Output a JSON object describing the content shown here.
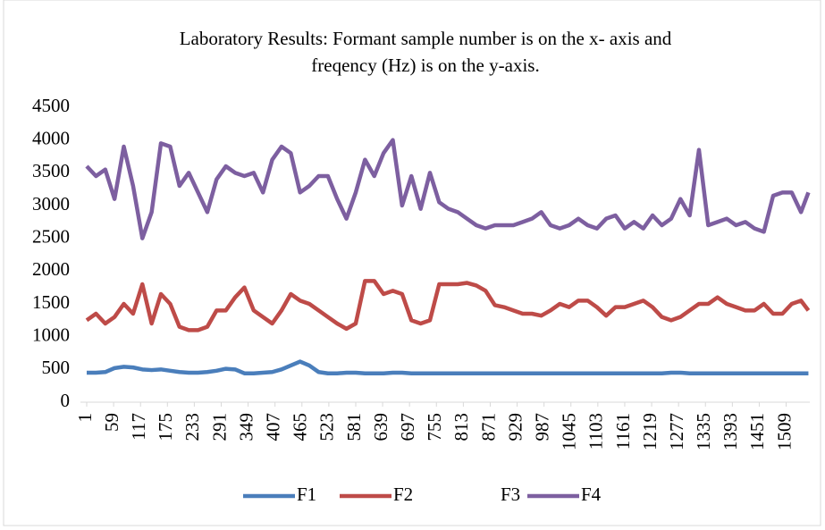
{
  "chart_data": {
    "type": "line",
    "title": [
      "Laboratory Results: Formant sample number is on the x- axis and",
      "freqency (Hz) is on the y-axis."
    ],
    "x": [
      1,
      21,
      41,
      61,
      81,
      101,
      121,
      141,
      161,
      181,
      201,
      221,
      241,
      261,
      281,
      301,
      321,
      341,
      361,
      381,
      401,
      421,
      441,
      461,
      481,
      501,
      521,
      541,
      561,
      581,
      601,
      621,
      641,
      661,
      681,
      701,
      721,
      741,
      761,
      781,
      801,
      821,
      841,
      861,
      881,
      901,
      921,
      941,
      961,
      981,
      1001,
      1021,
      1041,
      1061,
      1081,
      1101,
      1121,
      1141,
      1161,
      1181,
      1201,
      1221,
      1241,
      1261,
      1281,
      1301,
      1321,
      1341,
      1361,
      1381,
      1401,
      1421,
      1441,
      1461,
      1481,
      1501,
      1521,
      1541,
      1557
    ],
    "series": [
      {
        "name": "F1",
        "color": "#4a7ebb",
        "values": [
          450,
          450,
          460,
          520,
          540,
          530,
          500,
          490,
          500,
          480,
          460,
          450,
          450,
          460,
          480,
          510,
          500,
          440,
          440,
          450,
          460,
          500,
          560,
          620,
          560,
          460,
          440,
          440,
          450,
          450,
          440,
          440,
          440,
          450,
          450,
          440,
          440,
          440,
          440,
          440,
          440,
          440,
          440,
          440,
          440,
          440,
          440,
          440,
          440,
          440,
          440,
          440,
          440,
          440,
          440,
          440,
          440,
          440,
          440,
          440,
          440,
          440,
          440,
          450,
          450,
          440,
          440,
          440,
          440,
          440,
          440,
          440,
          440,
          440,
          440,
          440,
          440,
          440,
          440
        ]
      },
      {
        "name": "F2",
        "color": "#be4b48",
        "values": [
          1250,
          1350,
          1200,
          1300,
          1500,
          1350,
          1800,
          1200,
          1650,
          1500,
          1150,
          1100,
          1100,
          1150,
          1400,
          1400,
          1600,
          1750,
          1400,
          1300,
          1200,
          1400,
          1650,
          1550,
          1500,
          1400,
          1300,
          1200,
          1120,
          1200,
          1850,
          1850,
          1650,
          1700,
          1650,
          1250,
          1200,
          1250,
          1800,
          1800,
          1800,
          1820,
          1780,
          1700,
          1480,
          1450,
          1400,
          1350,
          1350,
          1320,
          1400,
          1500,
          1450,
          1550,
          1550,
          1450,
          1320,
          1450,
          1450,
          1500,
          1550,
          1450,
          1300,
          1250,
          1300,
          1400,
          1500,
          1500,
          1600,
          1500,
          1450,
          1400,
          1400,
          1500,
          1350,
          1350,
          1500,
          1550,
          1400
        ]
      },
      {
        "name": "F3",
        "values": [
          null,
          null,
          null,
          null,
          null,
          null,
          null,
          null,
          null,
          null,
          null,
          null,
          null,
          null,
          null,
          null,
          null,
          null,
          null,
          null,
          null,
          null,
          null,
          null,
          null,
          null,
          null,
          null,
          null,
          null,
          null,
          null,
          null,
          null,
          null,
          null,
          null,
          null,
          null,
          null,
          null,
          null,
          null,
          null,
          null,
          null,
          null,
          null,
          null,
          null,
          null,
          null,
          null,
          null,
          null,
          null,
          null,
          null,
          null,
          null,
          null,
          null,
          null,
          null,
          null,
          null,
          null,
          null,
          null,
          null,
          null,
          null,
          null,
          null,
          null,
          null,
          null,
          null,
          null
        ]
      },
      {
        "name": "F4",
        "color": "#7d5fa0",
        "values": [
          3600,
          3450,
          3550,
          3100,
          3900,
          3300,
          2500,
          2900,
          3950,
          3900,
          3300,
          3500,
          3200,
          2900,
          3400,
          3600,
          3500,
          3450,
          3500,
          3200,
          3700,
          3900,
          3800,
          3200,
          3300,
          3450,
          3450,
          3100,
          2800,
          3200,
          3700,
          3450,
          3800,
          4000,
          3000,
          3450,
          2950,
          3500,
          3050,
          2950,
          2900,
          2800,
          2700,
          2650,
          2700,
          2700,
          2700,
          2750,
          2800,
          2900,
          2700,
          2650,
          2700,
          2800,
          2700,
          2650,
          2800,
          2850,
          2650,
          2750,
          2650,
          2850,
          2700,
          2800,
          3100,
          2850,
          3850,
          2700,
          2750,
          2800,
          2700,
          2750,
          2650,
          2600,
          3150,
          3200,
          3200,
          2900,
          3200
        ]
      }
    ],
    "xlim": [
      1,
      1560
    ],
    "xticks": [
      1,
      59,
      117,
      175,
      233,
      291,
      349,
      407,
      465,
      523,
      581,
      639,
      697,
      755,
      813,
      871,
      929,
      987,
      1045,
      1103,
      1161,
      1219,
      1277,
      1335,
      1393,
      1451,
      1509
    ],
    "ylim": [
      0,
      4500
    ],
    "yticks": [
      0,
      500,
      1000,
      1500,
      2000,
      2500,
      3000,
      3500,
      4000,
      4500
    ]
  }
}
